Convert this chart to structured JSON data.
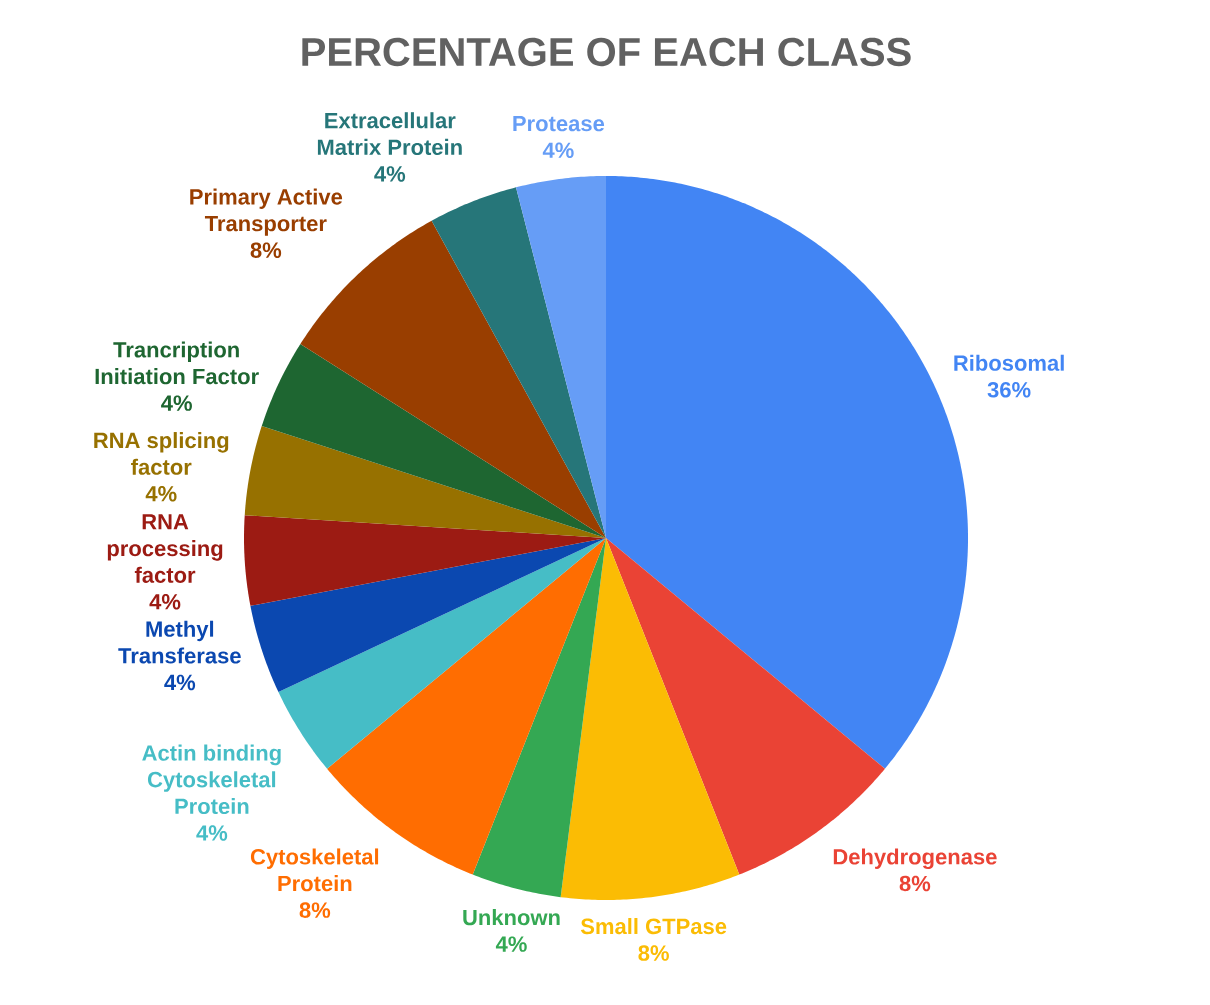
{
  "chart_data": {
    "type": "pie",
    "title": "PERCENTAGE OF EACH CLASS",
    "categories": [
      "Ribosomal",
      "Dehydrogenase",
      "Small GTPase",
      "Unknown",
      "Cytoskeletal Protein",
      "Actin binding Cytoskeletal Protein",
      "Methyl Transferase",
      "RNA processing factor",
      "RNA splicing factor",
      "Trancription Initiation Factor",
      "Primary Active Transporter",
      "Extracellular Matrix Protein",
      "Protease"
    ],
    "values": [
      36,
      8,
      8,
      4,
      8,
      4,
      4,
      4,
      4,
      4,
      8,
      4,
      4
    ],
    "value_labels": [
      "36%",
      "8%",
      "8%",
      "4%",
      "8%",
      "4%",
      "4%",
      "4%",
      "4%",
      "4%",
      "8%",
      "4%",
      "4%"
    ],
    "colors": [
      "#4285f4",
      "#ea4335",
      "#fbbc04",
      "#34a853",
      "#ff6d01",
      "#46bdc6",
      "#0b48b0",
      "#9c1b13",
      "#977100",
      "#1e6631",
      "#993e00",
      "#267679",
      "#669df6"
    ]
  }
}
